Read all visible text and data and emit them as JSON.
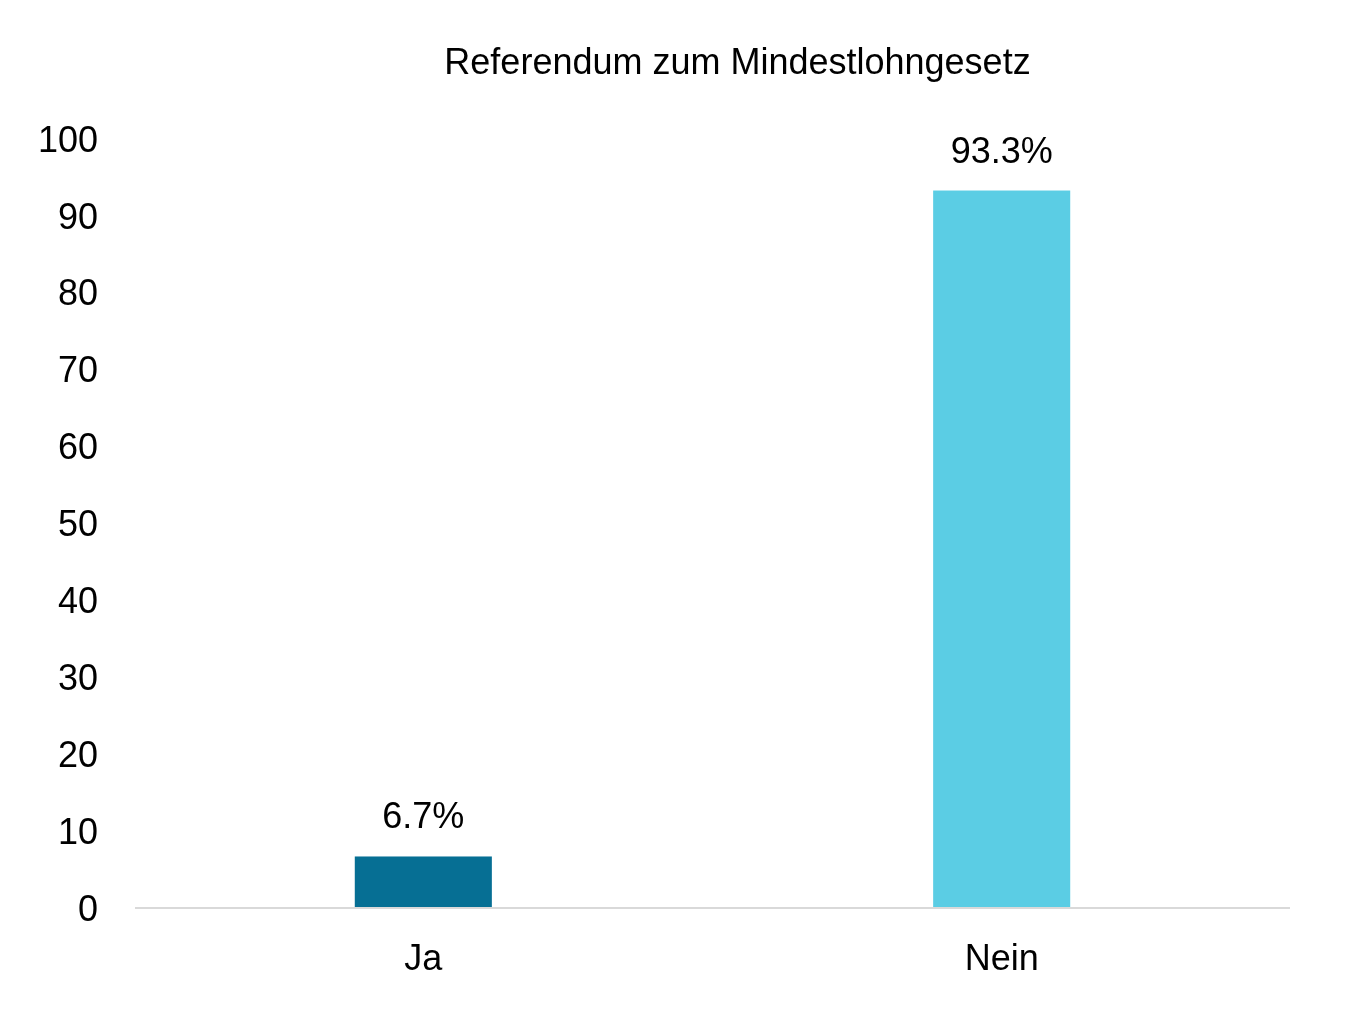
{
  "chart_data": {
    "type": "bar",
    "title": "Referendum zum Mindestlohngesetz",
    "categories": [
      "Ja",
      "Nein"
    ],
    "values": [
      6.7,
      93.3
    ],
    "colors": [
      "#066f94",
      "#5bcde4"
    ],
    "value_labels": [
      "6.7%",
      "93.3%"
    ],
    "ylim": [
      0,
      100
    ],
    "yticks": [
      0,
      10,
      20,
      30,
      40,
      50,
      60,
      70,
      80,
      90,
      100
    ],
    "grid": false
  }
}
